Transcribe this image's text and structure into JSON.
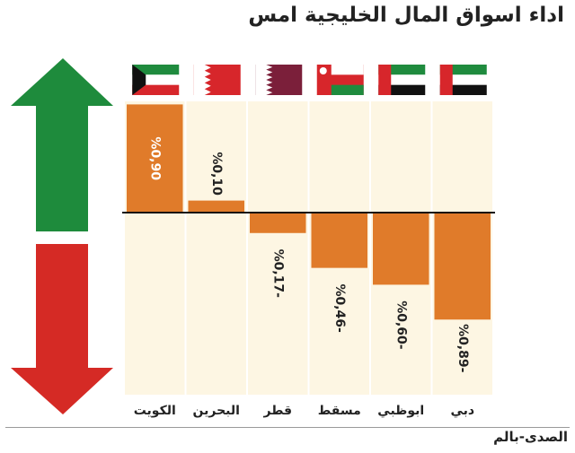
{
  "title": "اداء اسواق المال الخليجية امس",
  "footer": {
    "source": "الصدى-بالم"
  },
  "colors": {
    "bar": "#e07b2a",
    "panel": "#fdf6e3",
    "up_arrow": "#1e8b3c",
    "down_arrow": "#d52a25",
    "flag_red": "#d7262b",
    "flag_green": "#1f8b3e",
    "flag_maroon": "#7b1f3a"
  },
  "flags": [
    {
      "market": "الكويت",
      "icon": "kuwait-flag-icon"
    },
    {
      "market": "البحرين",
      "icon": "bahrain-flag-icon"
    },
    {
      "market": "قطر",
      "icon": "qatar-flag-icon"
    },
    {
      "market": "مسقط",
      "icon": "oman-flag-icon"
    },
    {
      "market": "ابوظبي",
      "icon": "uae-flag-icon"
    },
    {
      "market": "دبي",
      "icon": "uae-flag-icon"
    }
  ],
  "chart_data": {
    "type": "bar",
    "categories": [
      "الكويت",
      "البحرين",
      "قطر",
      "مسقط",
      "ابوظبي",
      "دبي"
    ],
    "values": [
      0.9,
      0.1,
      -0.17,
      -0.46,
      -0.6,
      -0.89
    ],
    "data_labels": [
      "%0,90",
      "%0,10",
      "%0,17-",
      "%0,46-",
      "%0,60-",
      "%0,89-"
    ],
    "title": "اداء اسواق المال الخليجية امس",
    "ylim": [
      -1.0,
      0.9
    ],
    "grid": false,
    "legend": "none"
  }
}
